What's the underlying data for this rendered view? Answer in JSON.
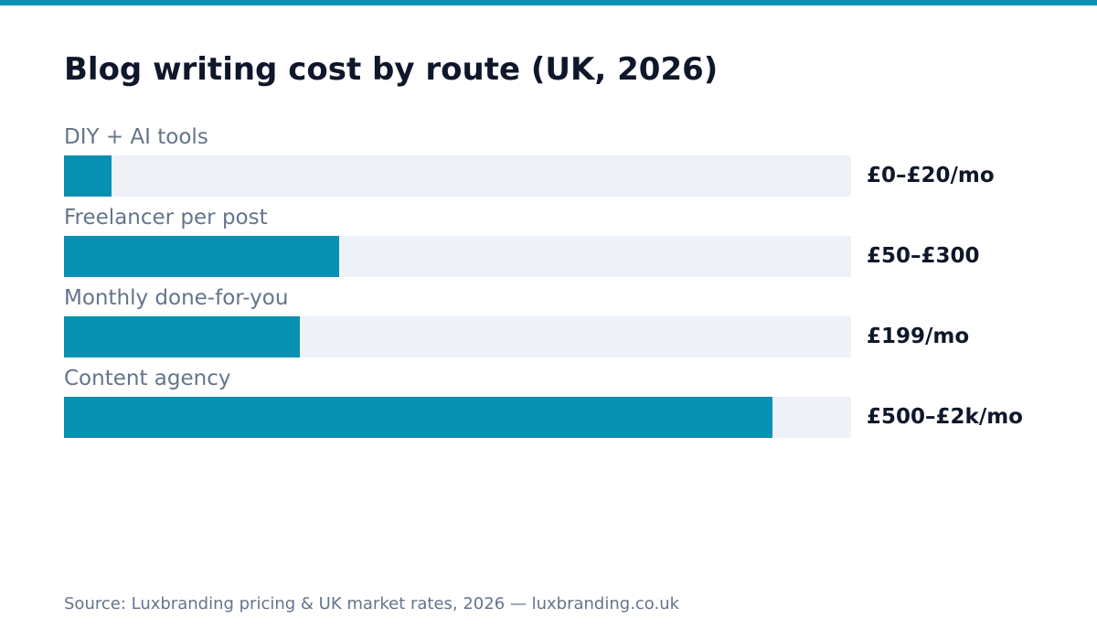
{
  "colors": {
    "accent": "#0891b2",
    "track": "#eef2f6",
    "title": "#0f172a",
    "muted": "#64748b"
  },
  "chart_data": {
    "type": "bar",
    "orientation": "horizontal",
    "title": "Blog writing cost by route (UK, 2026)",
    "categories": [
      "DIY + AI tools",
      "Freelancer per post",
      "Monthly done-for-you",
      "Content agency"
    ],
    "values": [
      0.06,
      0.35,
      0.3,
      0.9
    ],
    "value_labels": [
      "£0–£20/mo",
      "£50–£300",
      "£199/mo",
      "£500–£2k/mo"
    ],
    "xlim": [
      0,
      1
    ],
    "grid": false
  },
  "source": "Source: Luxbranding pricing & UK market rates, 2026 — luxbranding.co.uk"
}
